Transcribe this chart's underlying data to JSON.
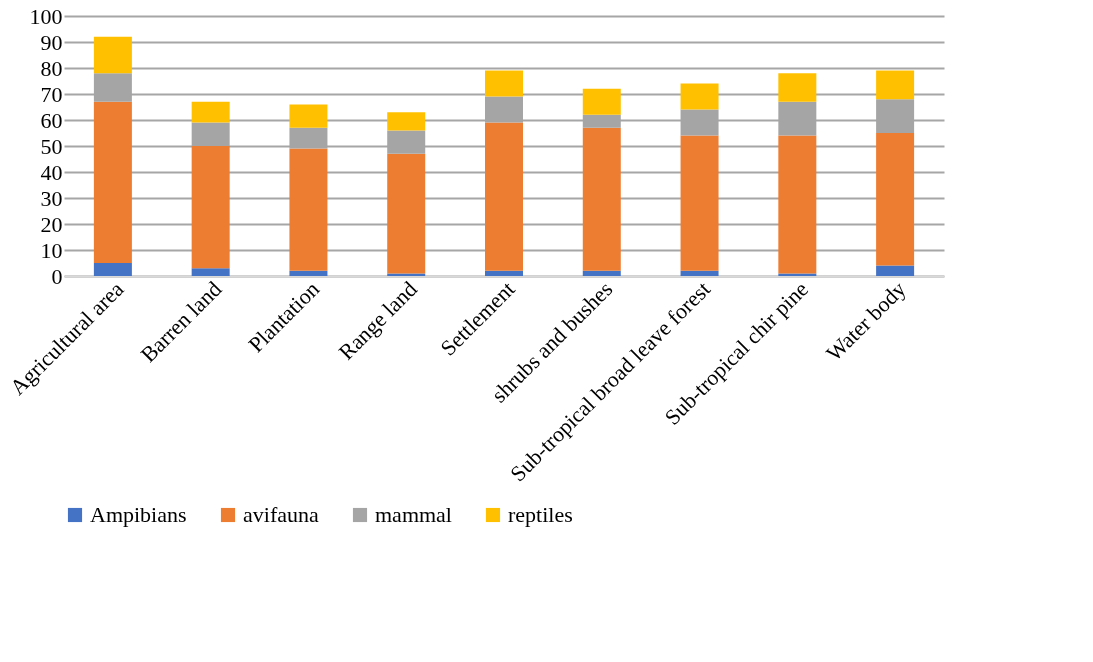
{
  "chart_data": {
    "type": "bar",
    "stacked": true,
    "categories": [
      "Agricultural area",
      "Barren land",
      "Plantation",
      "Range land",
      "Settlement",
      "shrubs and bushes",
      "Sub-tropical broad leave forest",
      "Sub-tropical chir pine",
      "Water body"
    ],
    "series": [
      {
        "name": "Ampibians",
        "color": "#4472c4",
        "values": [
          5,
          3,
          2,
          1,
          2,
          2,
          2,
          1,
          4
        ]
      },
      {
        "name": "avifauna",
        "color": "#ed7d31",
        "values": [
          62,
          47,
          47,
          46,
          57,
          55,
          52,
          53,
          51
        ]
      },
      {
        "name": "mammal",
        "color": "#a5a5a5",
        "values": [
          11,
          9,
          8,
          9,
          10,
          5,
          10,
          13,
          13
        ]
      },
      {
        "name": "reptiles",
        "color": "#ffc000",
        "values": [
          14,
          8,
          9,
          7,
          10,
          10,
          10,
          11,
          11
        ]
      }
    ],
    "ylim": [
      0,
      100
    ],
    "yticks": [
      0,
      10,
      20,
      30,
      40,
      50,
      60,
      70,
      80,
      90,
      100
    ],
    "grid": "y",
    "legend": "bottom"
  }
}
